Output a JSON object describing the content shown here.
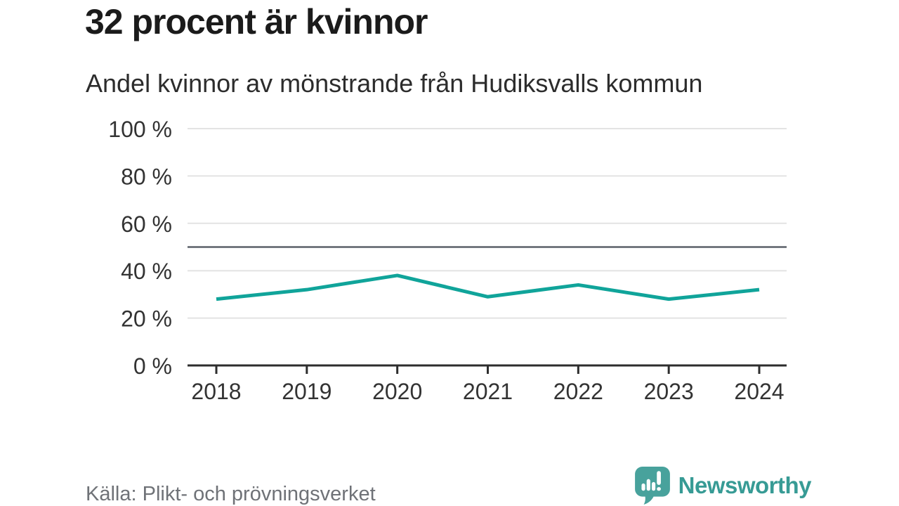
{
  "header": {
    "title": "32 procent är kvinnor",
    "subtitle": "Andel kvinnor av mönstrande från Hudiksvalls kommun"
  },
  "footer": {
    "source": "Källa: Plikt- och prövningsverket",
    "brand": "Newsworthy"
  },
  "colors": {
    "line_teal": "#10a49a",
    "grid": "#e3e3e3",
    "reference_line": "#5b6169",
    "axis": "#2d2d2d",
    "axis_text": "#333333",
    "title_text": "#1b1b1b",
    "source_text": "#6f7277",
    "logo_teal": "#48a29c"
  },
  "chart_data": {
    "type": "line",
    "title": "32 procent är kvinnor",
    "subtitle": "Andel kvinnor av mönstrande från Hudiksvalls kommun",
    "x": [
      "2018",
      "2019",
      "2020",
      "2021",
      "2022",
      "2023",
      "2024"
    ],
    "series": [
      {
        "name": "Andel kvinnor av mönstrande",
        "values": [
          28,
          32,
          38,
          29,
          34,
          28,
          32
        ]
      }
    ],
    "unit": "%",
    "ylim": [
      0,
      100
    ],
    "yticks": [
      0,
      20,
      40,
      60,
      80,
      100
    ],
    "ytick_labels": [
      "0 %",
      "20 %",
      "40 %",
      "60 %",
      "80 %",
      "100 %"
    ],
    "reference_line": {
      "value": 50
    },
    "grid": true,
    "legend": "none",
    "xlabel": "",
    "ylabel": ""
  }
}
